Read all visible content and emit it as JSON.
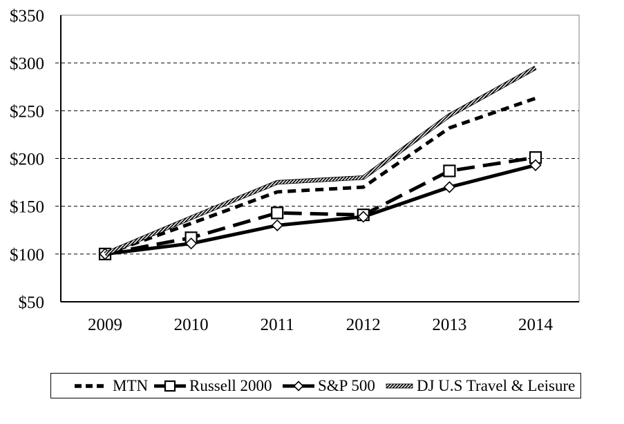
{
  "chart_data": {
    "type": "line",
    "title": "",
    "xlabel": "",
    "ylabel": "",
    "categories": [
      "2009",
      "2010",
      "2011",
      "2012",
      "2013",
      "2014"
    ],
    "series": [
      {
        "name": "MTN",
        "values": [
          100,
          132,
          165,
          170,
          232,
          263
        ]
      },
      {
        "name": "Russell 2000",
        "values": [
          100,
          117,
          143,
          141,
          187,
          201
        ]
      },
      {
        "name": "S&P 500",
        "values": [
          100,
          111,
          130,
          139,
          170,
          193
        ]
      },
      {
        "name": "DJ U.S Travel & Leisure",
        "values": [
          100,
          138,
          175,
          180,
          245,
          295
        ]
      }
    ],
    "ylim": [
      50,
      350
    ],
    "y_ticks": [
      350,
      300,
      250,
      200,
      150,
      100,
      50
    ],
    "y_tick_labels": [
      "$350",
      "$300",
      "$250",
      "$200",
      "$150",
      "$100",
      "$50"
    ],
    "grid": "horizontal-dashed",
    "legend_position": "bottom-boxed",
    "colors": {
      "series": "#000000",
      "background": "#ffffff",
      "plot_border": "#808080",
      "axis": "#000000"
    }
  }
}
